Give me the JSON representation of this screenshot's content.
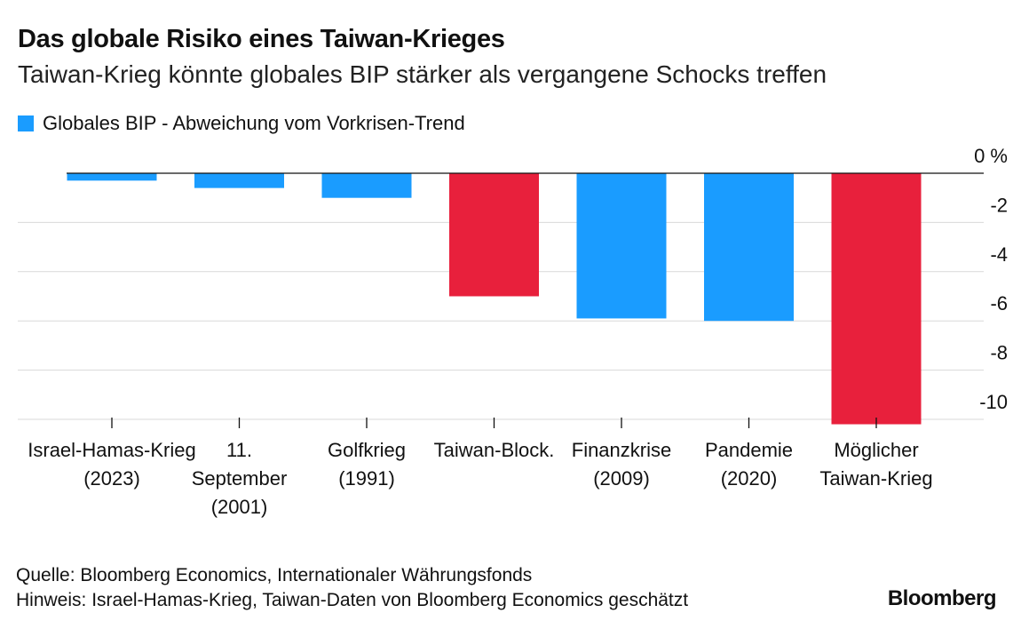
{
  "header": {
    "title": "Das globale Risiko eines Taiwan-Krieges",
    "subtitle": "Taiwan-Krieg könnte globales BIP stärker als vergangene Schocks treffen"
  },
  "legend": {
    "label": "Globales BIP - Abweichung vom Vorkrisen-Trend",
    "color": "#1a9cff"
  },
  "footer": {
    "source": "Quelle: Bloomberg Economics, Internationaler Währungsfonds",
    "note": "Hinweis: Israel-Hamas-Krieg, Taiwan-Daten von Bloomberg Economics geschätzt",
    "brand": "Bloomberg"
  },
  "chart_data": {
    "type": "bar",
    "categories": [
      [
        "Israel-Hamas-Krieg",
        "(2023)"
      ],
      [
        "11.",
        "September",
        "(2001)"
      ],
      [
        "Golfkrieg",
        "(1991)"
      ],
      [
        "Taiwan-Block."
      ],
      [
        "Finanzkrise",
        "(2009)"
      ],
      [
        "Pandemie",
        "(2020)"
      ],
      [
        "Möglicher",
        "Taiwan-Krieg"
      ]
    ],
    "values": [
      -0.3,
      -0.6,
      -1.0,
      -5.0,
      -5.9,
      -6.0,
      -10.2
    ],
    "colors": [
      "#1a9cff",
      "#1a9cff",
      "#1a9cff",
      "#e8203c",
      "#1a9cff",
      "#1a9cff",
      "#e8203c"
    ],
    "yticks": [
      "0 %",
      "-2",
      "-4",
      "-6",
      "-8",
      "-10"
    ],
    "ytick_values": [
      0,
      -2,
      -4,
      -6,
      -8,
      -10
    ],
    "ylim": [
      -10.2,
      0
    ],
    "grid": true
  }
}
